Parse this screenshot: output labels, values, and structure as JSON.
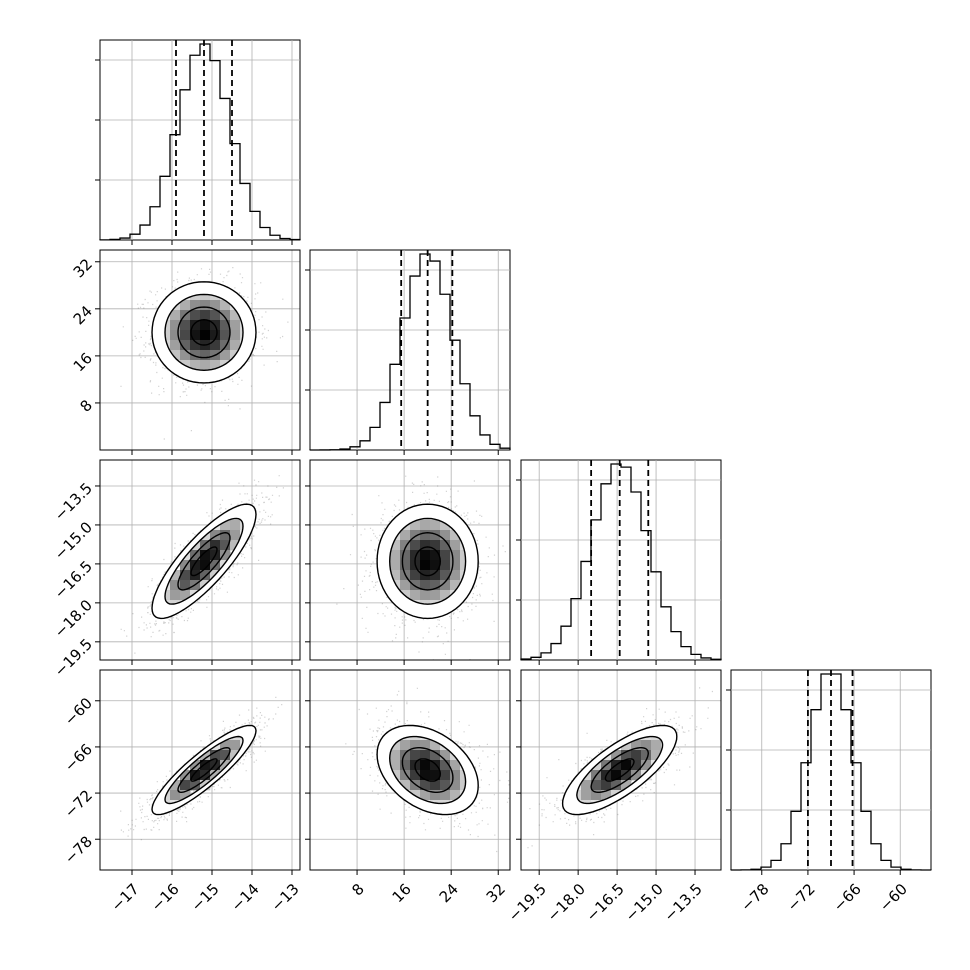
{
  "chart_data": {
    "type": "corner",
    "title": "",
    "params": [
      {
        "range": [
          -17.8,
          -12.8
        ],
        "ticks": [
          -17,
          -16,
          -15,
          -14,
          -13
        ],
        "tick_labels": [
          "−17",
          "−16",
          "−15",
          "−14",
          "−13"
        ],
        "mean": -15.2,
        "sd": 0.65,
        "quantiles": [
          -15.9,
          -15.2,
          -14.5
        ]
      },
      {
        "range": [
          0,
          34
        ],
        "ticks": [
          8,
          16,
          24,
          32
        ],
        "tick_labels": [
          "8",
          "16",
          "24",
          "32"
        ],
        "mean": 20,
        "sd": 4.3,
        "quantiles": [
          15.5,
          20,
          24.2
        ]
      },
      {
        "range": [
          -20.2,
          -12.5
        ],
        "ticks": [
          -19.5,
          -18.0,
          -16.5,
          -15.0,
          -13.5
        ],
        "tick_labels": [
          "−19.5",
          "−18.0",
          "−16.5",
          "−15.0",
          "−13.5"
        ],
        "mean": -16.4,
        "sd": 1.1,
        "quantiles": [
          -17.5,
          -16.4,
          -15.3
        ]
      },
      {
        "range": [
          -82,
          -56
        ],
        "ticks": [
          -78,
          -72,
          -66,
          -60
        ],
        "tick_labels": [
          "−78",
          "−72",
          "−66",
          "−60"
        ],
        "mean": -69,
        "sd": 2.9,
        "quantiles": [
          -72,
          -69,
          -66.2
        ]
      }
    ],
    "correlations": [
      [
        1,
        0,
        0.82,
        0.88
      ],
      [
        0,
        1,
        0,
        -0.35
      ],
      [
        0.82,
        0,
        1,
        0.75
      ],
      [
        0.88,
        -0.35,
        0.75,
        1
      ]
    ],
    "histogram_bins": 20,
    "contour_levels_sigma": [
      0.5,
      1.0,
      1.5,
      2.0
    ],
    "grid": true,
    "axis_labels": []
  }
}
